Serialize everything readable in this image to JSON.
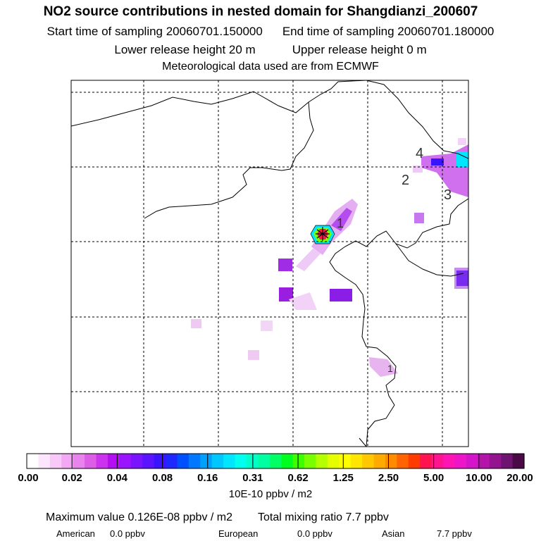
{
  "header": {
    "title": "NO2 source contributions in nested domain for Shangdianzi_200607",
    "start_label": "Start time of sampling 20060701.150000",
    "end_label": "End time of sampling 20060701.180000",
    "lower_label": "Lower release height   20 m",
    "upper_label": "Upper release height    0 m",
    "met_label": "Meteorological data used are from ECMWF"
  },
  "chart_data": {
    "type": "heatmap",
    "title": "NO2 source contributions in nested domain for Shangdianzi_200607",
    "colorbar": {
      "tick_labels": [
        "0.00",
        "0.02",
        "0.04",
        "0.08",
        "0.16",
        "0.31",
        "0.62",
        "1.25",
        "2.50",
        "5.00",
        "10.00",
        "20.00"
      ],
      "units": "10E-10 ppbv / m2",
      "colors": [
        "#ffffff",
        "#fde6fd",
        "#f8c8f8",
        "#f2a8f2",
        "#e884ec",
        "#dc5ee6",
        "#cc33ee",
        "#b30ff2",
        "#9b14ff",
        "#7a14ff",
        "#5a14ff",
        "#3a14ff",
        "#1e28ff",
        "#0050ff",
        "#0078ff",
        "#00a0ff",
        "#00c8ff",
        "#00e6ff",
        "#00ffee",
        "#00ffc8",
        "#00ffa0",
        "#00ff64",
        "#00ff1e",
        "#3cff00",
        "#78ff00",
        "#b4ff00",
        "#e6ff00",
        "#ffff00",
        "#ffe600",
        "#ffc800",
        "#ffaa00",
        "#ff8c00",
        "#ff6400",
        "#ff3c00",
        "#ff1450",
        "#ff1490",
        "#ff14b4",
        "#ee14c8",
        "#d414c8",
        "#b414aa",
        "#941490",
        "#6e1470",
        "#4a0a46"
      ]
    },
    "map_labels": [
      "1",
      "2",
      "3",
      "4"
    ],
    "max_value_text": "Maximum value  0.126E-08 ppbv / m2",
    "total_text": "Total mixing ratio       7.7 ppbv",
    "regions": [
      {
        "name": "American",
        "value": "0.0 ppbv"
      },
      {
        "name": "European",
        "value": "0.0 ppbv"
      },
      {
        "name": "Asian",
        "value": "7.7 ppbv"
      }
    ]
  }
}
